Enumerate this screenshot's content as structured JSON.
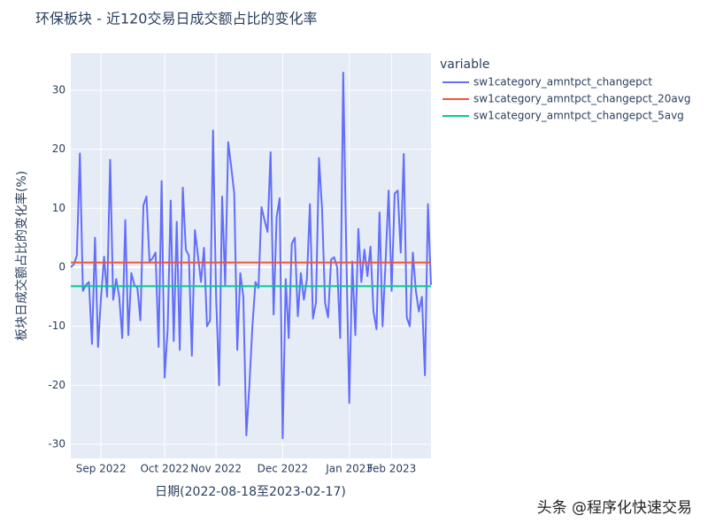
{
  "chart_data": {
    "type": "line",
    "title": "环保板块 - 近120交易日成交额占比的变化率",
    "x_label": "日期(2022-08-18至2023-02-17)",
    "y_label": "板块日成交额占比的变化率(%)",
    "legend_title": "variable",
    "watermark": "头条 @程序化快速交易",
    "categories": [
      null,
      null,
      null,
      null,
      null,
      null,
      null,
      null,
      null,
      null,
      null,
      null,
      null,
      null,
      null,
      null,
      null,
      null,
      null,
      null,
      null,
      null,
      null,
      null,
      null,
      null,
      null,
      null,
      null,
      null,
      null,
      null,
      null,
      null,
      null,
      null,
      null,
      null,
      null,
      null,
      null,
      null,
      null,
      null,
      null,
      null,
      null,
      null,
      null,
      null,
      null,
      null,
      null,
      null,
      null,
      null,
      null,
      null,
      null,
      null,
      null,
      null,
      null,
      null,
      null,
      null,
      null,
      null,
      null,
      null,
      null,
      null,
      null,
      null,
      null,
      null,
      null,
      null,
      null,
      null,
      null,
      null,
      null,
      null,
      null,
      null,
      null,
      null,
      null,
      null,
      null,
      null,
      null,
      null,
      null,
      null,
      null,
      null,
      null,
      null,
      null,
      null,
      null,
      null,
      null,
      null,
      null,
      null,
      null,
      null,
      null,
      null,
      null,
      null,
      null,
      null,
      null,
      null,
      null,
      null
    ],
    "xlim": [
      0,
      119
    ],
    "xticks": [
      {
        "value": 10,
        "label": "Sep 2022"
      },
      {
        "value": 31,
        "label": "Oct 2022"
      },
      {
        "value": 48,
        "label": "Nov 2022"
      },
      {
        "value": 70,
        "label": "Dec 2022"
      },
      {
        "value": 92,
        "label": "Jan 2023"
      },
      {
        "value": 106,
        "label": "Feb 2023"
      }
    ],
    "ylim": [
      -32.4,
      36.3
    ],
    "yticks": [
      -30,
      -20,
      -10,
      0,
      10,
      20,
      30
    ],
    "grid": true,
    "legend": "right",
    "series": [
      {
        "name": "sw1category_amntpct_changepct",
        "color": "#636efa",
        "values": [
          0,
          0.5,
          2,
          19.3,
          -4,
          -3,
          -2.5,
          -13,
          5,
          -13.5,
          -5,
          1.8,
          -5,
          18.2,
          -5.5,
          -2,
          -5,
          -12,
          8,
          -11.5,
          -1,
          -3,
          -3.5,
          -9,
          10.5,
          12,
          1,
          1.5,
          2.5,
          -13.5,
          14.6,
          -18.7,
          -10.5,
          11.3,
          -12.5,
          7.7,
          -14,
          13.5,
          3,
          2,
          -15,
          6.3,
          2,
          -2.5,
          3.3,
          -10,
          -9,
          23.2,
          -5,
          -20,
          12,
          -3,
          21.2,
          17,
          12.5,
          -14,
          -1,
          -5,
          -28.5,
          -20,
          -10,
          -2.5,
          -3.5,
          10.2,
          8,
          6,
          19.5,
          -8,
          8.5,
          11.7,
          -29,
          -2,
          -12,
          4,
          5,
          -8.3,
          -1,
          -5.5,
          -2,
          10.7,
          -8.7,
          -6,
          18.5,
          10,
          -6,
          -8.5,
          1.3,
          1.7,
          0,
          -12,
          33,
          3,
          -23,
          1,
          -11.5,
          6.5,
          -2.5,
          3,
          -1.5,
          3.5,
          -7.5,
          -10.5,
          9.3,
          -10,
          1,
          13,
          -4,
          12.5,
          13,
          2.5,
          19.2,
          -8.5,
          -10,
          2.5,
          -4,
          -7.5,
          -5,
          -18.3,
          10.7,
          -3
        ]
      },
      {
        "name": "sw1category_amntpct_changepct_20avg",
        "color": "#ef553b",
        "values": [
          0.8,
          0.8,
          0.8,
          0.8,
          0.8,
          0.8,
          0.8,
          0.8,
          0.8,
          0.8,
          0.8,
          0.8,
          0.8,
          0.8,
          0.8,
          0.8,
          0.8,
          0.8,
          0.8,
          0.8,
          0.8,
          0.8,
          0.8,
          0.8,
          0.8,
          0.8,
          0.8,
          0.8,
          0.8,
          0.8,
          0.8,
          0.8,
          0.8,
          0.8,
          0.8,
          0.8,
          0.8,
          0.8,
          0.8,
          0.8,
          0.8,
          0.8,
          0.8,
          0.8,
          0.8,
          0.8,
          0.8,
          0.8,
          0.8,
          0.8,
          0.8,
          0.8,
          0.8,
          0.8,
          0.8,
          0.8,
          0.8,
          0.8,
          0.8,
          0.8,
          0.8,
          0.8,
          0.8,
          0.8,
          0.8,
          0.8,
          0.8,
          0.8,
          0.8,
          0.8,
          0.8,
          0.8,
          0.8,
          0.8,
          0.8,
          0.8,
          0.8,
          0.8,
          0.8,
          0.8,
          0.8,
          0.8,
          0.8,
          0.8,
          0.8,
          0.8,
          0.8,
          0.8,
          0.8,
          0.8,
          0.8,
          0.8,
          0.8,
          0.8,
          0.8,
          0.8,
          0.8,
          0.8,
          0.8,
          0.8,
          0.8,
          0.8,
          0.8,
          0.8,
          0.8,
          0.8,
          0.8,
          0.8,
          0.8,
          0.8,
          0.8,
          0.8,
          0.8,
          0.8,
          0.8,
          0.8,
          0.8,
          0.8,
          0.8,
          0.8
        ]
      },
      {
        "name": "sw1category_amntpct_changepct_5avg",
        "color": "#00cc96",
        "values": [
          -3.2,
          -3.2,
          -3.2,
          -3.2,
          -3.2,
          -3.2,
          -3.2,
          -3.2,
          -3.2,
          -3.2,
          -3.2,
          -3.2,
          -3.2,
          -3.2,
          -3.2,
          -3.2,
          -3.2,
          -3.2,
          -3.2,
          -3.2,
          -3.2,
          -3.2,
          -3.2,
          -3.2,
          -3.2,
          -3.2,
          -3.2,
          -3.2,
          -3.2,
          -3.2,
          -3.2,
          -3.2,
          -3.2,
          -3.2,
          -3.2,
          -3.2,
          -3.2,
          -3.2,
          -3.2,
          -3.2,
          -3.2,
          -3.2,
          -3.2,
          -3.2,
          -3.2,
          -3.2,
          -3.2,
          -3.2,
          -3.2,
          -3.2,
          -3.2,
          -3.2,
          -3.2,
          -3.2,
          -3.2,
          -3.2,
          -3.2,
          -3.2,
          -3.2,
          -3.2,
          -3.2,
          -3.2,
          -3.2,
          -3.2,
          -3.2,
          -3.2,
          -3.2,
          -3.2,
          -3.2,
          -3.2,
          -3.2,
          -3.2,
          -3.2,
          -3.2,
          -3.2,
          -3.2,
          -3.2,
          -3.2,
          -3.2,
          -3.2,
          -3.2,
          -3.2,
          -3.2,
          -3.2,
          -3.2,
          -3.2,
          -3.2,
          -3.2,
          -3.2,
          -3.2,
          -3.2,
          -3.2,
          -3.2,
          -3.2,
          -3.2,
          -3.2,
          -3.2,
          -3.2,
          -3.2,
          -3.2,
          -3.2,
          -3.2,
          -3.2,
          -3.2,
          -3.2,
          -3.2,
          -3.2,
          -3.2,
          -3.2,
          -3.2,
          -3.2,
          -3.2,
          -3.2,
          -3.2,
          -3.2,
          -3.2,
          -3.2,
          -3.2,
          -3.2,
          -3.2
        ]
      }
    ]
  }
}
